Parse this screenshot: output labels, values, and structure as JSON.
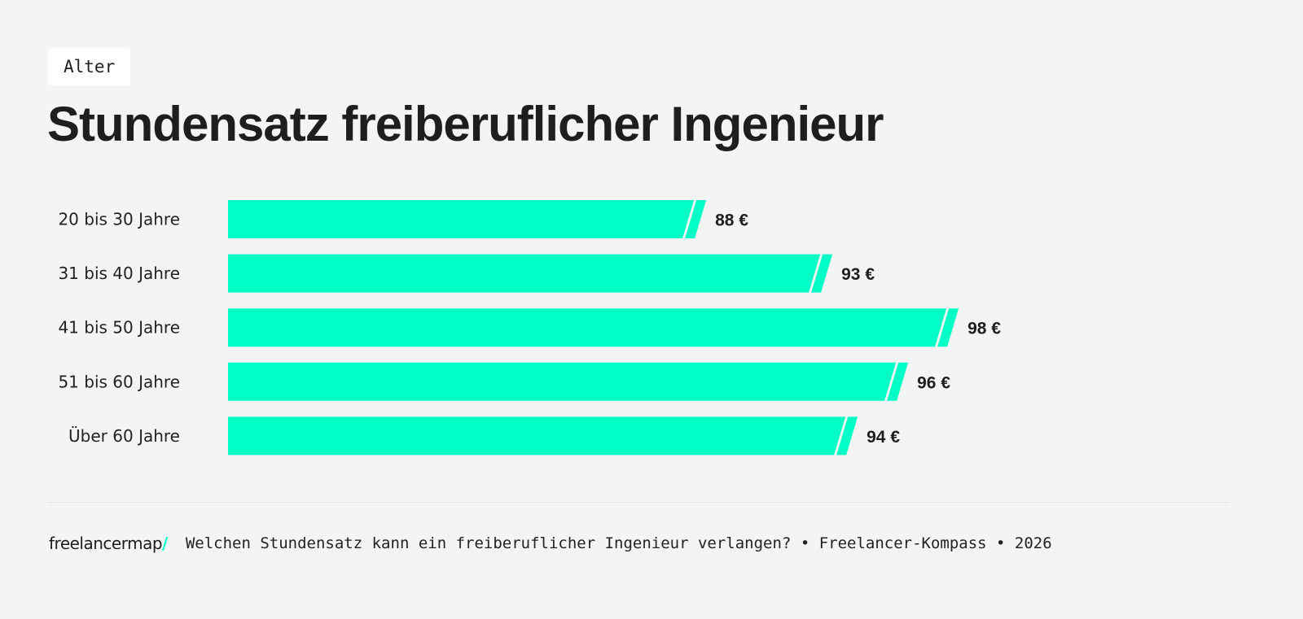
{
  "tag": "Alter",
  "title": "Stundensatz freiberuflicher Ingenieur",
  "footer": {
    "logo_text": "freelancermap",
    "logo_slash": "/",
    "source": "Welchen Stundensatz kann ein freiberuflicher Ingenieur verlangen? • Freelancer-Kompass • 2026"
  },
  "colors": {
    "bar": "#00ffc6",
    "text": "#1e1e1e",
    "background": "#f4f4f4"
  },
  "chart_data": {
    "type": "bar",
    "orientation": "horizontal",
    "axis_truncated": true,
    "unit": "€",
    "categories": [
      "20 bis 30 Jahre",
      "31 bis 40 Jahre",
      "41 bis 50 Jahre",
      "51 bis 60 Jahre",
      "Über 60 Jahre"
    ],
    "values": [
      88,
      93,
      98,
      96,
      94
    ],
    "value_labels": [
      "88 €",
      "93 €",
      "98 €",
      "96 €",
      "94 €"
    ],
    "title": "Stundensatz freiberuflicher Ingenieur",
    "xlabel": "",
    "ylabel": "",
    "grid": false
  }
}
